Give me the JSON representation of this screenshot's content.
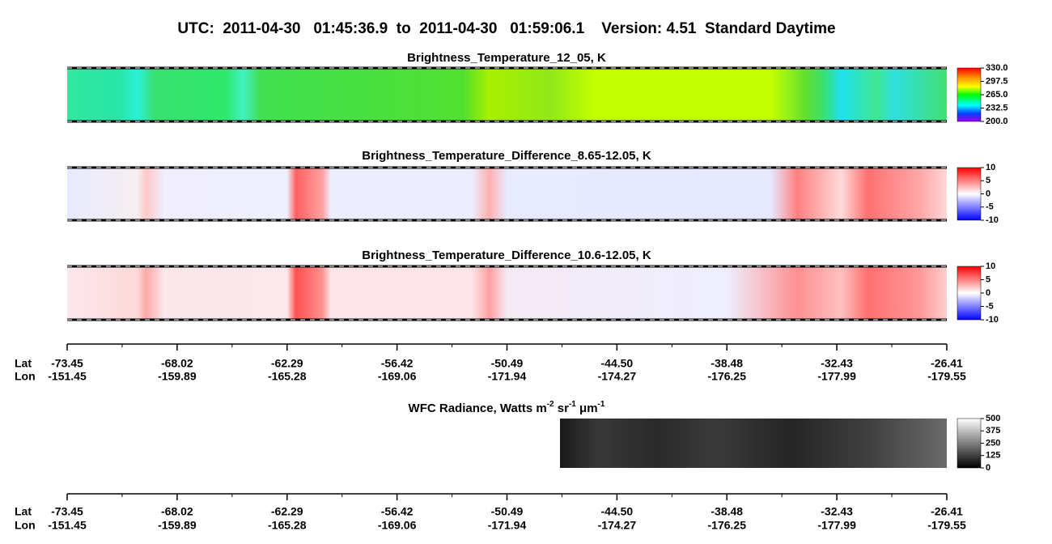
{
  "header": {
    "title": "UTC:  2011-04-30   01:45:36.9  to  2011-04-30   01:59:06.1    Version: 4.51  Standard Daytime"
  },
  "panels": [
    {
      "title": "Brightness_Temperature_12_05, K",
      "colorbar": [
        "330.0",
        "297.5",
        "265.0",
        "232.5",
        "200.0"
      ]
    },
    {
      "title": "Brightness_Temperature_Difference_8.65-12.05, K",
      "colorbar": [
        "10",
        "5",
        "0",
        "-5",
        "-10"
      ]
    },
    {
      "title": "Brightness_Temperature_Difference_10.6-12.05, K",
      "colorbar": [
        "10",
        "5",
        "0",
        "-5",
        "-10"
      ]
    },
    {
      "title": [
        "WFC Radiance, Watts m",
        "-2",
        " sr",
        "-1",
        " μm",
        "-1"
      ],
      "colorbar": [
        "500",
        "375",
        "250",
        "125",
        "0"
      ]
    }
  ],
  "axis": {
    "lat_label": "Lat",
    "lon_label": "Lon",
    "lat": [
      "-73.45",
      "-68.02",
      "-62.29",
      "-56.42",
      "-50.49",
      "-44.50",
      "-38.48",
      "-32.43",
      "-26.41"
    ],
    "lon": [
      "-151.45",
      "-159.89",
      "-165.28",
      "-169.06",
      "-171.94",
      "-174.27",
      "-176.25",
      "-177.99",
      "-179.55"
    ]
  }
}
